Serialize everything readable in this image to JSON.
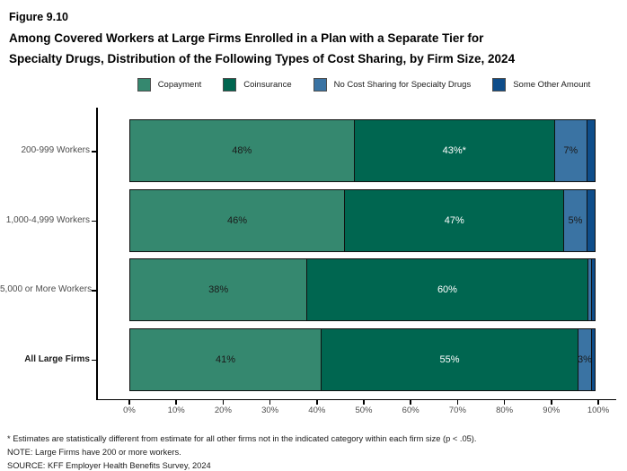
{
  "figure": {
    "label": "Figure 9.10",
    "title_line1": "Among Covered Workers at Large Firms Enrolled in a Plan with a Separate Tier for",
    "title_line2": "Specialty Drugs, Distribution of the Following Types of Cost Sharing, by Firm Size, 2024"
  },
  "colors": {
    "copayment": "#35886F",
    "coinsurance": "#006650",
    "no_cost_sharing": "#3A73A3",
    "some_other_amount": "#0E4D8A",
    "axis": "#000000",
    "tick_text": "#4d4d4d"
  },
  "chart_data": {
    "type": "bar",
    "orientation": "horizontal",
    "stacked": true,
    "title": "Among Covered Workers at Large Firms Enrolled in a Plan with a Separate Tier for Specialty Drugs, Distribution of the Following Types of Cost Sharing, by Firm Size, 2024",
    "categories": [
      "200-999 Workers",
      "1,000-4,999 Workers",
      "5,000 or More Workers",
      "All Large Firms"
    ],
    "emphasized_category": "All Large Firms",
    "series": [
      {
        "name": "Copayment",
        "color": "#35886F",
        "label_color": "#1a1a1a",
        "values": [
          48,
          46,
          38,
          41
        ],
        "labels": [
          "48%",
          "46%",
          "38%",
          "41%"
        ]
      },
      {
        "name": "Coinsurance",
        "color": "#006650",
        "label_color": "#ffffff",
        "values": [
          43,
          47,
          60,
          55
        ],
        "labels": [
          "43%*",
          "47%",
          "60%",
          "55%"
        ]
      },
      {
        "name": "No Cost Sharing for Specialty Drugs",
        "color": "#3A73A3",
        "label_color": "#1a1a1a",
        "values": [
          7,
          5,
          1,
          3
        ],
        "labels": [
          "7%",
          "5%",
          "",
          "3%"
        ]
      },
      {
        "name": "Some Other Amount",
        "color": "#0E4D8A",
        "label_color": "#ffffff",
        "values": [
          2,
          2,
          1,
          1
        ],
        "labels": [
          "",
          "",
          "",
          ""
        ]
      }
    ],
    "xlim": [
      0,
      100
    ],
    "x_ticks": [
      "0%",
      "10%",
      "20%",
      "30%",
      "40%",
      "50%",
      "60%",
      "70%",
      "80%",
      "90%",
      "100%"
    ],
    "xlabel": "",
    "ylabel": "",
    "grid": false,
    "legend_position": "top"
  },
  "footnotes": [
    "* Estimates are statistically different from estimate for all other firms not in the indicated category within each firm size (p < .05).",
    "NOTE: Large Firms have 200 or more workers.",
    "SOURCE: KFF Employer Health Benefits Survey, 2024"
  ]
}
